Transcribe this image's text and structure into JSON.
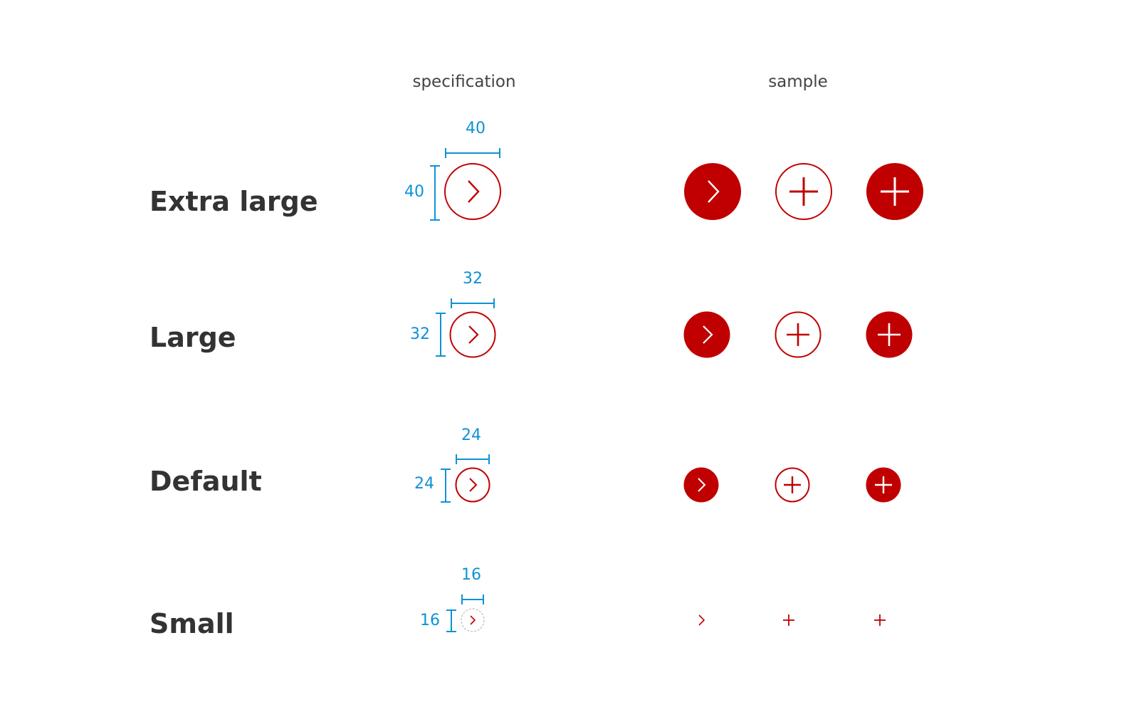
{
  "headers": {
    "specification": "specification",
    "sample": "sample"
  },
  "colors": {
    "accent": "#c00000",
    "dimension": "#0e92d6",
    "dashed": "#bbbbbb",
    "on_accent": "#ffffff"
  },
  "rows": [
    {
      "label": "Extra large",
      "size": "40"
    },
    {
      "label": "Large",
      "size": "32"
    },
    {
      "label": "Default",
      "size": "24"
    },
    {
      "label": "Small",
      "size": "16"
    }
  ],
  "samples": [
    "chevron-right-icon-filled",
    "plus-icon-outline",
    "plus-icon-filled"
  ]
}
